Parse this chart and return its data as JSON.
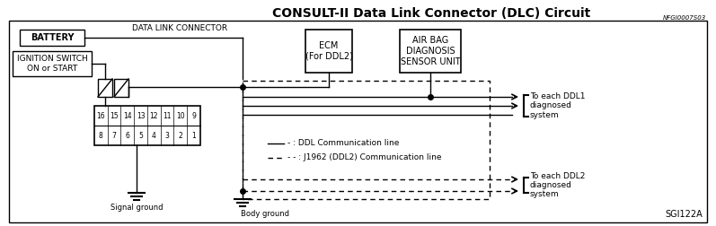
{
  "title": "CONSULT-II Data Link Connector (DLC) Circuit",
  "title_code": "NFGI0007S03",
  "bg_color": "#ffffff",
  "legend_ddl": "- : DDL Communication line",
  "legend_j1962": "- - : J1962 (DDL2) Communication line",
  "label_battery": "BATTERY",
  "label_ignition": "IGNITION SWITCH\nON or START",
  "label_dlc": "DATA LINK CONNECTOR",
  "label_ecm": "ECM\n(For DDL2)",
  "label_airbag": "AIR BAG\nDIAGNOSIS\nSENSOR UNIT",
  "label_ddl1": "To each DDL1\ndiagnosed\nsystem",
  "label_ddl2": "To each DDL2\ndiagnosed\nsystem",
  "label_signal_gnd": "Signal ground",
  "label_body_gnd": "Body ground",
  "label_ref": "SGI122A",
  "connector_pins_top": [
    "16",
    "15",
    "14",
    "13",
    "12",
    "11",
    "10",
    "9"
  ],
  "connector_pins_bot": [
    "8",
    "7",
    "6",
    "5",
    "4",
    "3",
    "2",
    "1"
  ]
}
